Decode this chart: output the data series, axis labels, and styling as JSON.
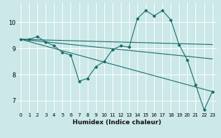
{
  "xlabel": "Humidex (Indice chaleur)",
  "bg_color": "#cce8e8",
  "line_color": "#1a6b6b",
  "grid_color": "#ffffff",
  "xlim": [
    -0.5,
    23.5
  ],
  "ylim": [
    6.55,
    10.75
  ],
  "xticks": [
    0,
    1,
    2,
    3,
    4,
    5,
    6,
    7,
    8,
    9,
    10,
    11,
    12,
    13,
    14,
    15,
    16,
    17,
    18,
    19,
    20,
    21,
    22,
    23
  ],
  "yticks": [
    7,
    8,
    9,
    10
  ],
  "line1_x": [
    0,
    1,
    2,
    3,
    4,
    5,
    6,
    7,
    8,
    9,
    10,
    11,
    12,
    13,
    14,
    15,
    16,
    17,
    18,
    19,
    20,
    21,
    22,
    23
  ],
  "line1_y": [
    9.35,
    9.35,
    9.45,
    9.25,
    9.1,
    8.85,
    8.75,
    7.75,
    7.85,
    8.3,
    8.5,
    8.95,
    9.1,
    9.05,
    10.15,
    10.45,
    10.25,
    10.45,
    10.1,
    9.15,
    8.55,
    7.6,
    6.65,
    7.35
  ],
  "line2_x": [
    0,
    23
  ],
  "line2_y": [
    9.35,
    9.15
  ],
  "line3_x": [
    0,
    23
  ],
  "line3_y": [
    9.35,
    8.6
  ],
  "line4_x": [
    0,
    23
  ],
  "line4_y": [
    9.35,
    7.35
  ]
}
